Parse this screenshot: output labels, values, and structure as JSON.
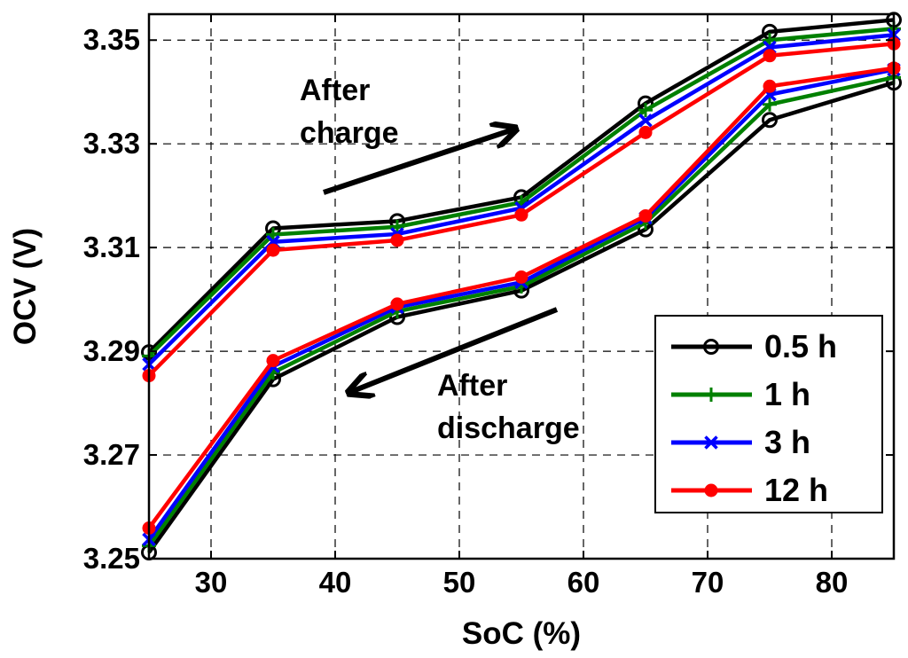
{
  "chart_data": {
    "type": "line",
    "title": "",
    "xlabel": "SoC (%)",
    "ylabel": "OCV (V)",
    "xlim": [
      25,
      85
    ],
    "ylim": [
      3.25,
      3.355
    ],
    "xticks": [
      30,
      40,
      50,
      60,
      70,
      80
    ],
    "yticks": [
      3.25,
      3.27,
      3.29,
      3.31,
      3.33,
      3.35
    ],
    "ytick_labels": [
      "3.25",
      "3.27",
      "3.29",
      "3.31",
      "3.33",
      "3.35"
    ],
    "grid": true,
    "legend_position": "bottom-right",
    "x": [
      25,
      35,
      45,
      55,
      65,
      75,
      85
    ],
    "series": [
      {
        "name": "0.5 h",
        "color": "#000000",
        "marker": "circle",
        "charge": [
          3.2898,
          3.3137,
          3.3151,
          3.3197,
          3.3378,
          3.3516,
          3.3539
        ],
        "discharge": [
          3.2512,
          3.2846,
          3.2966,
          3.3017,
          3.3135,
          3.3346,
          3.3418
        ]
      },
      {
        "name": "1 h",
        "color": "#008000",
        "marker": "plus",
        "charge": [
          3.2891,
          3.3125,
          3.314,
          3.3187,
          3.3365,
          3.35,
          3.3522
        ],
        "discharge": [
          3.2525,
          3.2859,
          3.2977,
          3.3025,
          3.3148,
          3.3376,
          3.3428
        ]
      },
      {
        "name": "3 h",
        "color": "#0000ff",
        "marker": "x",
        "charge": [
          3.2875,
          3.3111,
          3.3126,
          3.3176,
          3.3345,
          3.3486,
          3.351
        ],
        "discharge": [
          3.2537,
          3.2871,
          3.2985,
          3.3033,
          3.3157,
          3.3395,
          3.3443
        ]
      },
      {
        "name": "12 h",
        "color": "#ff0000",
        "marker": "dot",
        "charge": [
          3.2853,
          3.3095,
          3.3114,
          3.3163,
          3.3322,
          3.347,
          3.3493
        ],
        "discharge": [
          3.2559,
          3.2882,
          3.2991,
          3.3043,
          3.3161,
          3.3411,
          3.3446
        ]
      }
    ],
    "annotations": [
      {
        "lines": [
          "After",
          "charge"
        ],
        "arrow": "up-right"
      },
      {
        "lines": [
          "After",
          "discharge"
        ],
        "arrow": "down-left"
      }
    ]
  }
}
